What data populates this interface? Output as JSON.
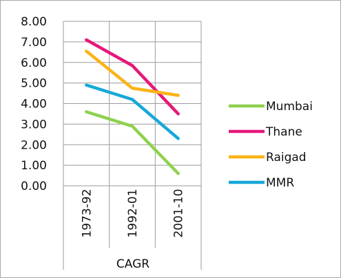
{
  "chart_data": {
    "type": "line",
    "categories": [
      "1973-92",
      "1992-01",
      "2001-10"
    ],
    "group_label": "CAGR",
    "ylim": [
      0,
      8
    ],
    "yticks": [
      "0.00",
      "1.00",
      "2.00",
      "3.00",
      "4.00",
      "5.00",
      "6.00",
      "7.00",
      "8.00"
    ],
    "grid": true,
    "legend_position": "right",
    "series": [
      {
        "name": "Mumbai",
        "color": "#8fd14f",
        "values": [
          3.6,
          2.9,
          0.6
        ]
      },
      {
        "name": "Thane",
        "color": "#e6177a",
        "values": [
          7.1,
          5.85,
          3.5
        ]
      },
      {
        "name": "Raigad",
        "color": "#fbb316",
        "values": [
          6.55,
          4.75,
          4.4
        ]
      },
      {
        "name": "MMR",
        "color": "#17a8d9",
        "values": [
          4.9,
          4.2,
          2.3
        ]
      }
    ]
  }
}
